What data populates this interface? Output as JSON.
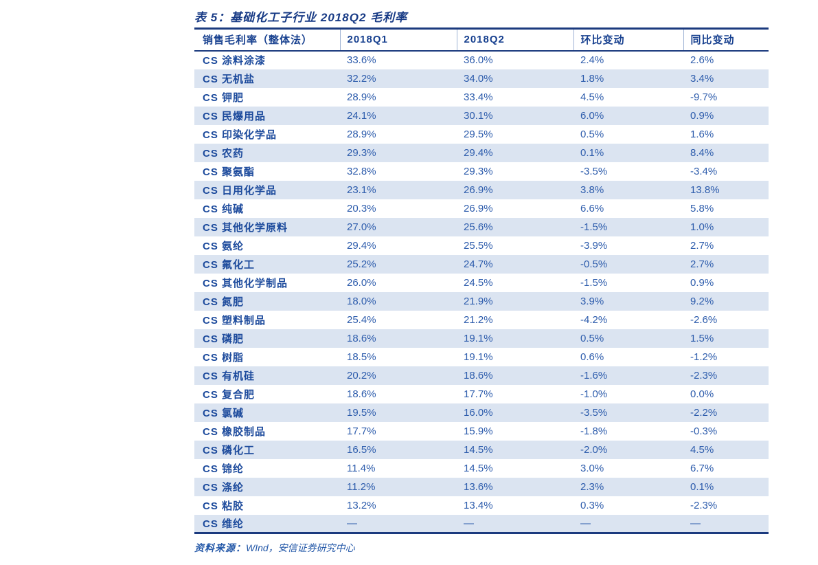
{
  "table": {
    "title": "表 5：基础化工子行业 2018Q2 毛利率",
    "columns": [
      "销售毛利率（整体法）",
      "2018Q1",
      "2018Q2",
      "环比变动",
      "同比变动"
    ],
    "rows": [
      [
        "CS 涂料涂漆",
        "33.6%",
        "36.0%",
        "2.4%",
        "2.6%"
      ],
      [
        "CS 无机盐",
        "32.2%",
        "34.0%",
        "1.8%",
        "3.4%"
      ],
      [
        "CS 钾肥",
        "28.9%",
        "33.4%",
        "4.5%",
        "-9.7%"
      ],
      [
        "CS 民爆用品",
        "24.1%",
        "30.1%",
        "6.0%",
        "0.9%"
      ],
      [
        "CS 印染化学品",
        "28.9%",
        "29.5%",
        "0.5%",
        "1.6%"
      ],
      [
        "CS 农药",
        "29.3%",
        "29.4%",
        "0.1%",
        "8.4%"
      ],
      [
        "CS 聚氨酯",
        "32.8%",
        "29.3%",
        "-3.5%",
        "-3.4%"
      ],
      [
        "CS 日用化学品",
        "23.1%",
        "26.9%",
        "3.8%",
        "13.8%"
      ],
      [
        "CS 纯碱",
        "20.3%",
        "26.9%",
        "6.6%",
        "5.8%"
      ],
      [
        "CS 其他化学原料",
        "27.0%",
        "25.6%",
        "-1.5%",
        "1.0%"
      ],
      [
        "CS 氨纶",
        "29.4%",
        "25.5%",
        "-3.9%",
        "2.7%"
      ],
      [
        "CS 氟化工",
        "25.2%",
        "24.7%",
        "-0.5%",
        "2.7%"
      ],
      [
        "CS 其他化学制品",
        "26.0%",
        "24.5%",
        "-1.5%",
        "0.9%"
      ],
      [
        "CS 氮肥",
        "18.0%",
        "21.9%",
        "3.9%",
        "9.2%"
      ],
      [
        "CS 塑料制品",
        "25.4%",
        "21.2%",
        "-4.2%",
        "-2.6%"
      ],
      [
        "CS 磷肥",
        "18.6%",
        "19.1%",
        "0.5%",
        "1.5%"
      ],
      [
        "CS 树脂",
        "18.5%",
        "19.1%",
        "0.6%",
        "-1.2%"
      ],
      [
        "CS 有机硅",
        "20.2%",
        "18.6%",
        "-1.6%",
        "-2.3%"
      ],
      [
        "CS 复合肥",
        "18.6%",
        "17.7%",
        "-1.0%",
        "0.0%"
      ],
      [
        "CS 氯碱",
        "19.5%",
        "16.0%",
        "-3.5%",
        "-2.2%"
      ],
      [
        "CS 橡胶制品",
        "17.7%",
        "15.9%",
        "-1.8%",
        "-0.3%"
      ],
      [
        "CS 磷化工",
        "16.5%",
        "14.5%",
        "-2.0%",
        "4.5%"
      ],
      [
        "CS 锦纶",
        "11.4%",
        "14.5%",
        "3.0%",
        "6.7%"
      ],
      [
        "CS 涤纶",
        "11.2%",
        "13.6%",
        "2.3%",
        "0.1%"
      ],
      [
        "CS 粘胶",
        "13.2%",
        "13.4%",
        "0.3%",
        "-2.3%"
      ],
      [
        "CS 维纶",
        "—",
        "—",
        "—",
        "—"
      ]
    ],
    "source_label": "资料来源：",
    "source_value": "WInd，安信证券研究中心"
  },
  "colors": {
    "border_navy": "#1b3a7e",
    "title_text": "#173a85",
    "header_text": "#17408f",
    "row_label_text": "#1c4a9c",
    "value_text": "#2d5cac",
    "alt_row_bg": "#dbe4f1",
    "source_text": "#2458a8",
    "page_bg": "#ffffff"
  }
}
